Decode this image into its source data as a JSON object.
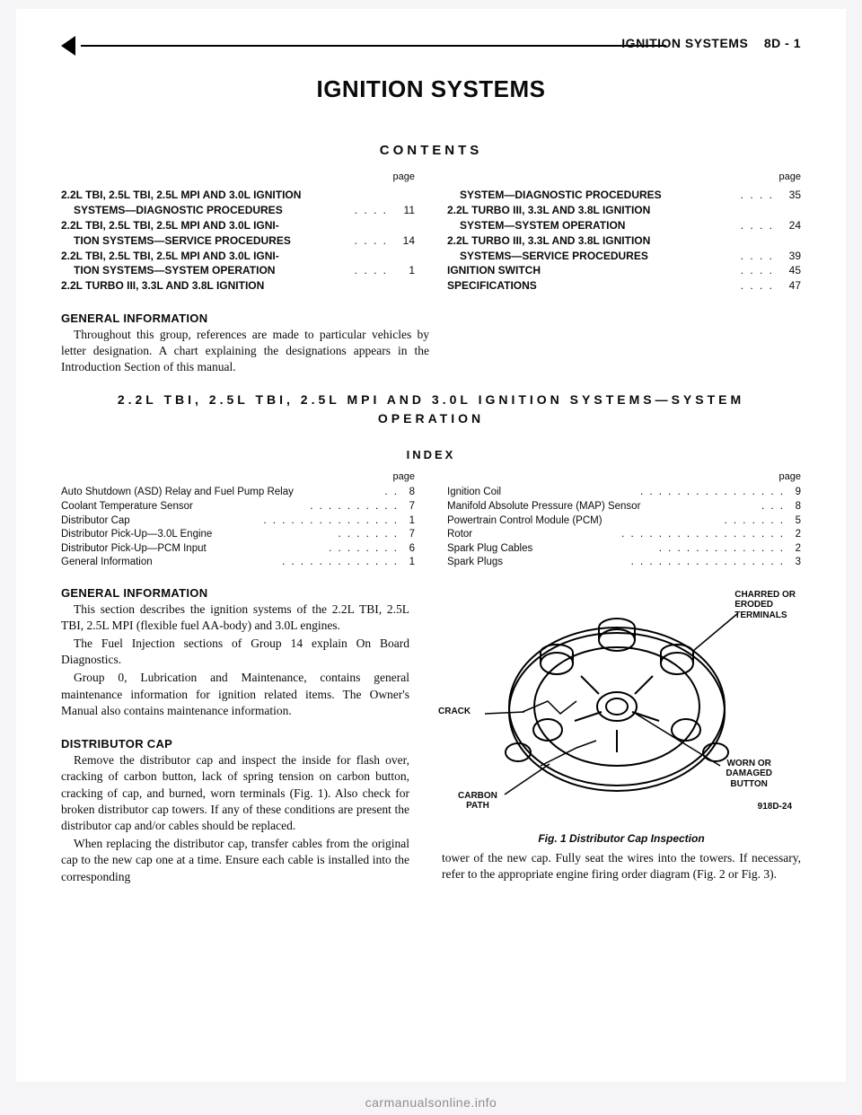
{
  "header": {
    "section_label": "IGNITION SYSTEMS",
    "page_code": "8D - 1"
  },
  "main_title": "IGNITION SYSTEMS",
  "contents_title": "CONTENTS",
  "toc": {
    "page_label": "page",
    "left": [
      {
        "lines": [
          "2.2L TBI, 2.5L TBI, 2.5L MPI AND 3.0L IGNITION",
          "SYSTEMS—DIAGNOSTIC PROCEDURES"
        ],
        "page": "11"
      },
      {
        "lines": [
          "2.2L TBI, 2.5L TBI, 2.5L MPI AND 3.0L IGNI-",
          "TION SYSTEMS—SERVICE PROCEDURES"
        ],
        "page": "14"
      },
      {
        "lines": [
          "2.2L TBI, 2.5L TBI, 2.5L MPI AND 3.0L IGNI-",
          "TION SYSTEMS—SYSTEM OPERATION"
        ],
        "page": "1"
      },
      {
        "lines": [
          "2.2L TURBO III, 3.3L AND 3.8L IGNITION"
        ],
        "page": ""
      }
    ],
    "right": [
      {
        "lines": [
          "SYSTEM—DIAGNOSTIC PROCEDURES"
        ],
        "page": "35",
        "indent": true
      },
      {
        "lines": [
          "2.2L TURBO III, 3.3L AND 3.8L IGNITION",
          "SYSTEM—SYSTEM OPERATION"
        ],
        "page": "24"
      },
      {
        "lines": [
          "2.2L TURBO III, 3.3L AND 3.8L IGNITION",
          "SYSTEMS—SERVICE PROCEDURES"
        ],
        "page": "39"
      },
      {
        "lines": [
          "IGNITION SWITCH"
        ],
        "page": "45"
      },
      {
        "lines": [
          "SPECIFICATIONS"
        ],
        "page": "47"
      }
    ]
  },
  "general_info_1": {
    "heading": "GENERAL INFORMATION",
    "text": "Throughout this group, references are made to particular vehicles by letter designation. A chart explaining the designations appears in the Introduction Section of this manual."
  },
  "section_heading": "2.2L TBI, 2.5L TBI, 2.5L MPI AND 3.0L IGNITION SYSTEMS—SYSTEM\nOPERATION",
  "index_title": "INDEX",
  "index": {
    "page_label": "page",
    "left": [
      {
        "t": "Auto Shutdown (ASD) Relay and Fuel Pump Relay",
        "p": "8"
      },
      {
        "t": "Coolant Temperature Sensor",
        "p": "7"
      },
      {
        "t": "Distributor Cap",
        "p": "1"
      },
      {
        "t": "Distributor Pick-Up—3.0L Engine",
        "p": "7"
      },
      {
        "t": "Distributor Pick-Up—PCM Input",
        "p": "6"
      },
      {
        "t": "General Information",
        "p": "1"
      }
    ],
    "right": [
      {
        "t": "Ignition Coil",
        "p": "9"
      },
      {
        "t": "Manifold Absolute Pressure (MAP) Sensor",
        "p": "8"
      },
      {
        "t": "Powertrain Control Module (PCM)",
        "p": "5"
      },
      {
        "t": "Rotor",
        "p": "2"
      },
      {
        "t": "Spark Plug Cables",
        "p": "2"
      },
      {
        "t": "Spark Plugs",
        "p": "3"
      }
    ]
  },
  "general_info_2": {
    "heading": "GENERAL INFORMATION",
    "paragraphs": [
      "This section describes the ignition systems of the 2.2L TBI, 2.5L TBI, 2.5L MPI (flexible fuel AA-body) and 3.0L engines.",
      "The Fuel Injection sections of Group 14 explain On Board Diagnostics.",
      "Group 0, Lubrication and Maintenance, contains general maintenance information for ignition related items. The Owner's Manual also contains maintenance information."
    ]
  },
  "dist_cap": {
    "heading": "DISTRIBUTOR CAP",
    "paragraphs": [
      "Remove the distributor cap and inspect the inside for flash over, cracking of carbon button, lack of spring tension on carbon button, cracking of cap, and burned, worn terminals (Fig. 1). Also check for broken distributor cap towers. If any of these conditions are present the distributor cap and/or cables should be replaced.",
      "When replacing the distributor cap, transfer cables from the original cap to the new cap one at a time. Ensure each cable is installed into the corresponding"
    ]
  },
  "right_continuation": "tower of the new cap. Fully seat the wires into the towers. If necessary, refer to the appropriate engine firing order diagram (Fig. 2 or Fig. 3).",
  "figure": {
    "caption": "Fig. 1 Distributor Cap Inspection",
    "labels": {
      "charred": "CHARRED OR\nERODED\nTERMINALS",
      "crack": "CRACK",
      "worn": "WORN OR\nDAMAGED\nBUTTON",
      "carbon": "CARBON\nPATH",
      "code": "918D-24"
    },
    "style": {
      "stroke": "#000000",
      "stroke_width": 2,
      "fill": "#ffffff"
    }
  },
  "footer": "carmanualsonline.info"
}
